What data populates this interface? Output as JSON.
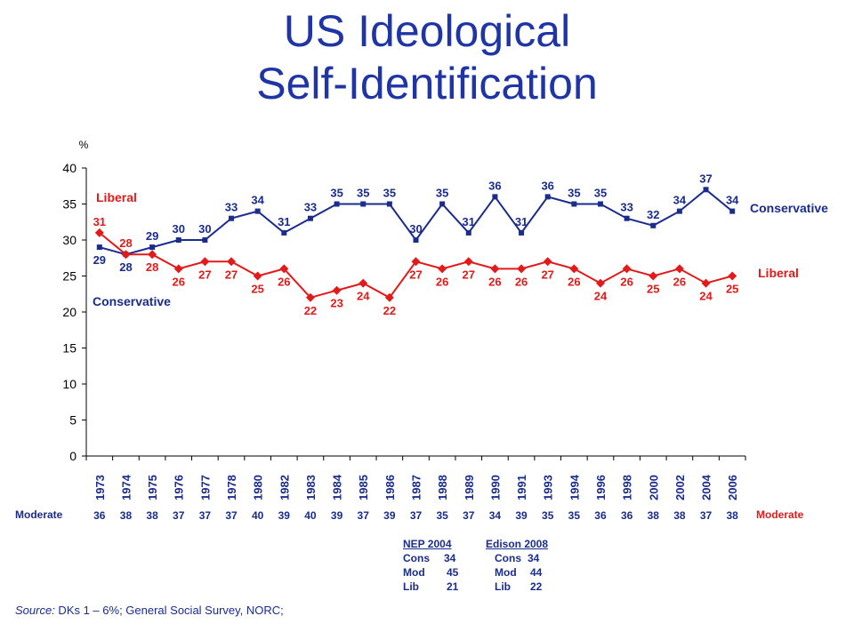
{
  "title_line1": "US Ideological",
  "title_line2": "Self-Identification",
  "chart_data": {
    "type": "line",
    "ylabel": "%",
    "ylim": [
      0,
      40
    ],
    "yticks": [
      0,
      5,
      10,
      15,
      20,
      25,
      30,
      35,
      40
    ],
    "categories": [
      "1973",
      "1974",
      "1975",
      "1976",
      "1977",
      "1978",
      "1980",
      "1982",
      "1983",
      "1984",
      "1985",
      "1986",
      "1987",
      "1988",
      "1989",
      "1990",
      "1991",
      "1993",
      "1994",
      "1996",
      "1998",
      "2000",
      "2002",
      "2004",
      "2006"
    ],
    "series": [
      {
        "name": "Conservative",
        "color": "#1a2c8c",
        "marker": "square",
        "values": [
          29,
          28,
          29,
          30,
          30,
          33,
          34,
          31,
          33,
          35,
          35,
          35,
          30,
          35,
          31,
          36,
          31,
          36,
          35,
          35,
          33,
          32,
          34,
          37,
          34
        ]
      },
      {
        "name": "Liberal",
        "color": "#e21a1a",
        "marker": "diamond",
        "values": [
          31,
          28,
          28,
          26,
          27,
          27,
          25,
          26,
          22,
          23,
          24,
          22,
          27,
          26,
          27,
          26,
          26,
          27,
          26,
          24,
          26,
          25,
          26,
          24,
          25
        ]
      }
    ],
    "labels": {
      "liberal_left": "Liberal",
      "conservative_left": "Conservative",
      "conservative_right": "Conservative",
      "liberal_right": "Liberal"
    },
    "moderate_label": "Moderate",
    "moderate_values": [
      36,
      38,
      38,
      37,
      37,
      37,
      40,
      39,
      40,
      39,
      37,
      39,
      37,
      35,
      37,
      34,
      39,
      35,
      35,
      36,
      36,
      38,
      38,
      37,
      38
    ]
  },
  "exit_polls": {
    "nep": {
      "header": "NEP 2004",
      "rows": [
        {
          "k": "Cons",
          "v": "34"
        },
        {
          "k": "Mod",
          "v": "45"
        },
        {
          "k": "Lib",
          "v": "21"
        }
      ]
    },
    "edison": {
      "header": "Edison 2008",
      "rows": [
        {
          "k": "Cons",
          "v": "34"
        },
        {
          "k": "Mod",
          "v": "44"
        },
        {
          "k": "Lib",
          "v": "22"
        }
      ]
    }
  },
  "source": {
    "prefix": "Source:",
    "text": " DKs 1 – 6%; General Social Survey, NORC;"
  }
}
